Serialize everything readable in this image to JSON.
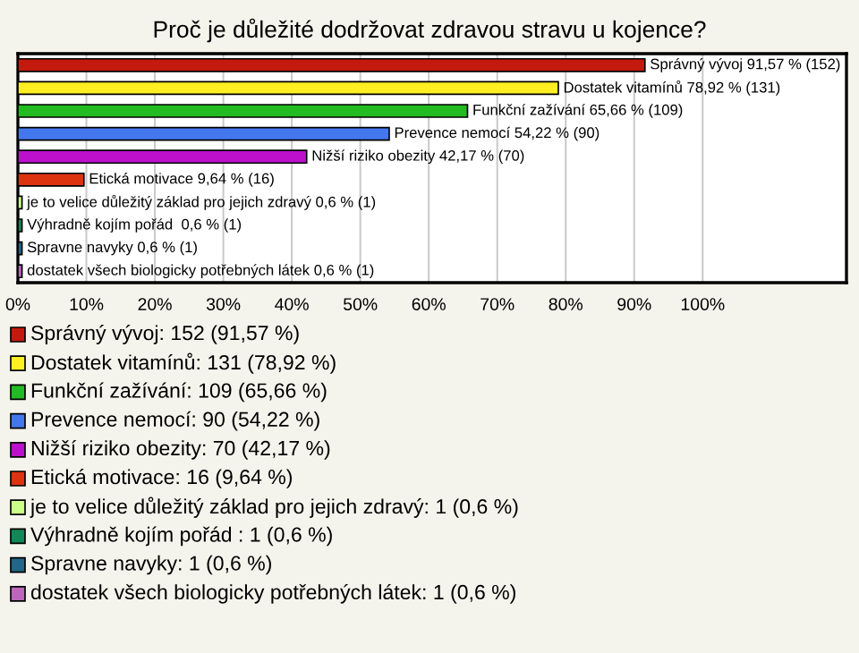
{
  "chart_data": {
    "type": "bar",
    "orientation": "horizontal",
    "title": "Proč je důležité dodržovat zdravou stravu u kojence?",
    "categories": [
      null,
      null,
      null,
      null,
      null,
      null,
      null,
      null,
      null,
      null
    ],
    "values": [
      91.57,
      78.92,
      65.66,
      54.22,
      42.17,
      9.64,
      0.6,
      0.6,
      0.6,
      0.6
    ],
    "colors": [
      "#c41a0e",
      "#ffee22",
      "#22bb22",
      "#4477ee",
      "#bb11cc",
      "#dd3311",
      "#ccff88",
      "#118855",
      "#226688",
      "#bb66bb"
    ],
    "value_labels": [
      "Správný vývoj 91,57 % (152)",
      "Dostatek vitamínů 78,92 % (131)",
      "Funkční zažívání 65,66 % (109)",
      "Prevence nemocí 54,22 % (90)",
      "Nižší riziko obezity 42,17 % (70)",
      "Etická motivace 9,64 % (16)",
      "je to velice důležitý základ pro jejich zdravý 0,6 % (1)",
      "Výhradně kojím pořád  0,6 % (1)",
      "Spravne navyky 0,6 % (1)",
      "dostatek všech biologicky potřebných látek 0,6 % (1)"
    ],
    "xlim": [
      0,
      121
    ],
    "xticks": [
      {
        "value": 0,
        "label": "0%"
      },
      {
        "value": 10,
        "label": "10%"
      },
      {
        "value": 20,
        "label": "20%"
      },
      {
        "value": 30,
        "label": "30%"
      },
      {
        "value": 40,
        "label": "40%"
      },
      {
        "value": 50,
        "label": "50%"
      },
      {
        "value": 60,
        "label": "60%"
      },
      {
        "value": 70,
        "label": "70%"
      },
      {
        "value": 80,
        "label": "80%"
      },
      {
        "value": 90,
        "label": "90%"
      },
      {
        "value": 100,
        "label": "100%"
      }
    ],
    "grid": "x",
    "annotations": [
      "Správný vývoj: 152 (91,57 %)",
      "Dostatek vitamínů: 131 (78,92 %)",
      "Funkční zažívání: 109 (65,66 %)",
      "Prevence nemocí: 90 (54,22 %)",
      "Nižší riziko obezity: 70 (42,17 %)",
      "Etická motivace: 16 (9,64 %)",
      "je to velice důležitý základ pro jejich zdravý: 1 (0,6 %)",
      "Výhradně kojím pořád : 1 (0,6 %)",
      "Spravne navyky: 1 (0,6 %)",
      "dostatek všech biologicky potřebných látek: 1 (0,6 %)"
    ]
  }
}
